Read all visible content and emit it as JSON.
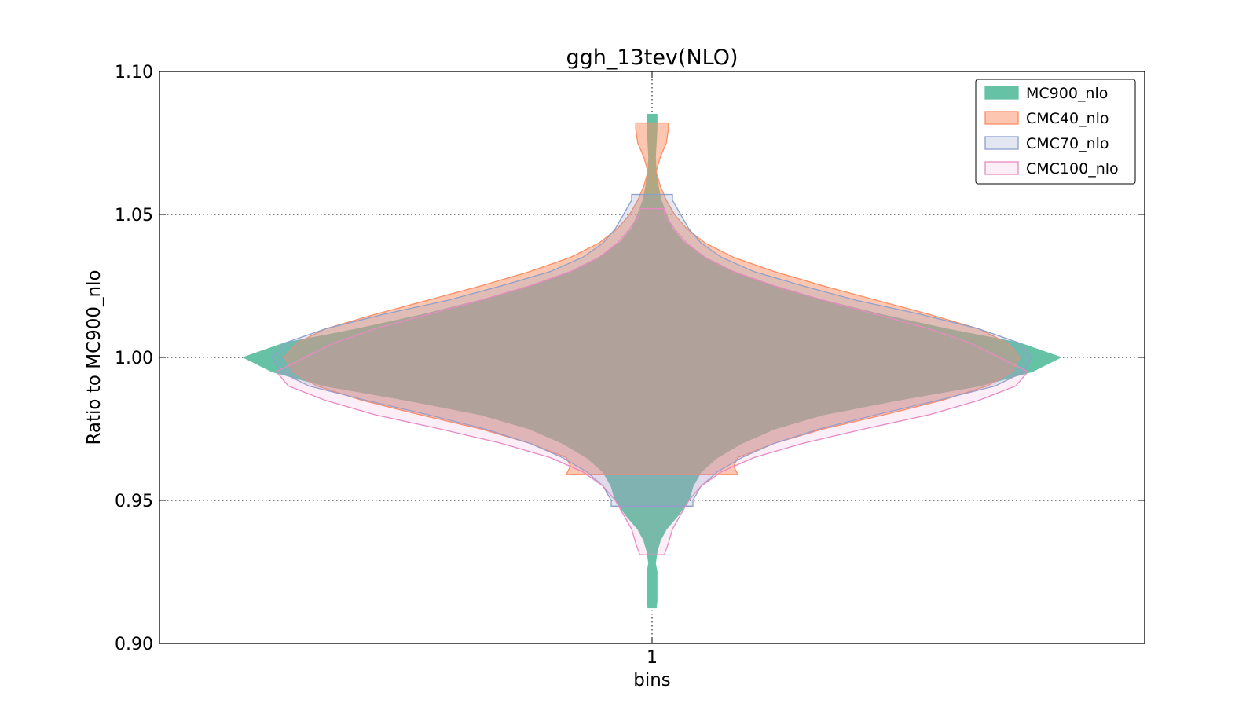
{
  "chart_data": {
    "type": "violin",
    "title": "ggh_13tev(NLO)",
    "xlabel": "bins",
    "ylabel": "Ratio to MC900_nlo",
    "categories": [
      "1"
    ],
    "ylim": [
      0.9,
      1.1
    ],
    "yticks": [
      "0.90",
      "0.95",
      "1.00",
      "1.05",
      "1.10"
    ],
    "grid": true,
    "legend_position": "top-right",
    "series": [
      {
        "name": "MC900_nlo",
        "color": "#66c2a5",
        "alpha": 1.0,
        "min": 0.9125,
        "max": 1.085,
        "profile": [
          [
            0.9125,
            0.01
          ],
          [
            0.915,
            0.012
          ],
          [
            0.92,
            0.012
          ],
          [
            0.925,
            0.012
          ],
          [
            0.928,
            0.008
          ],
          [
            0.932,
            0.012
          ],
          [
            0.936,
            0.02
          ],
          [
            0.94,
            0.035
          ],
          [
            0.945,
            0.065
          ],
          [
            0.95,
            0.09
          ],
          [
            0.955,
            0.1
          ],
          [
            0.96,
            0.12
          ],
          [
            0.965,
            0.16
          ],
          [
            0.97,
            0.22
          ],
          [
            0.975,
            0.3
          ],
          [
            0.98,
            0.42
          ],
          [
            0.985,
            0.6
          ],
          [
            0.99,
            0.8
          ],
          [
            0.995,
            0.93
          ],
          [
            1.0,
            1.0
          ],
          [
            1.005,
            0.9
          ],
          [
            1.01,
            0.72
          ],
          [
            1.015,
            0.56
          ],
          [
            1.02,
            0.42
          ],
          [
            1.025,
            0.3
          ],
          [
            1.03,
            0.2
          ],
          [
            1.035,
            0.13
          ],
          [
            1.04,
            0.08
          ],
          [
            1.045,
            0.05
          ],
          [
            1.05,
            0.035
          ],
          [
            1.055,
            0.022
          ],
          [
            1.06,
            0.015
          ],
          [
            1.065,
            0.01
          ],
          [
            1.07,
            0.008
          ],
          [
            1.075,
            0.01
          ],
          [
            1.08,
            0.012
          ],
          [
            1.085,
            0.012
          ]
        ]
      },
      {
        "name": "CMC40_nlo",
        "color": "#fc8d62",
        "alpha": 0.5,
        "min": 0.959,
        "max": 1.082,
        "profile": [
          [
            0.959,
            0.21
          ],
          [
            0.962,
            0.2
          ],
          [
            0.965,
            0.21
          ],
          [
            0.97,
            0.3
          ],
          [
            0.975,
            0.42
          ],
          [
            0.98,
            0.57
          ],
          [
            0.985,
            0.71
          ],
          [
            0.99,
            0.82
          ],
          [
            0.995,
            0.88
          ],
          [
            1.0,
            0.9
          ],
          [
            1.005,
            0.87
          ],
          [
            1.01,
            0.8
          ],
          [
            1.015,
            0.68
          ],
          [
            1.02,
            0.55
          ],
          [
            1.025,
            0.42
          ],
          [
            1.03,
            0.3
          ],
          [
            1.035,
            0.2
          ],
          [
            1.04,
            0.13
          ],
          [
            1.045,
            0.085
          ],
          [
            1.05,
            0.055
          ],
          [
            1.055,
            0.035
          ],
          [
            1.06,
            0.02
          ],
          [
            1.065,
            0.01
          ],
          [
            1.07,
            0.02
          ],
          [
            1.075,
            0.035
          ],
          [
            1.08,
            0.04
          ],
          [
            1.082,
            0.04
          ]
        ]
      },
      {
        "name": "CMC70_nlo",
        "color": "#8da0cb",
        "alpha": 0.25,
        "min": 0.948,
        "max": 1.057,
        "profile": [
          [
            0.948,
            0.1
          ],
          [
            0.95,
            0.1
          ],
          [
            0.955,
            0.12
          ],
          [
            0.96,
            0.16
          ],
          [
            0.965,
            0.22
          ],
          [
            0.97,
            0.3
          ],
          [
            0.975,
            0.41
          ],
          [
            0.98,
            0.55
          ],
          [
            0.985,
            0.7
          ],
          [
            0.99,
            0.84
          ],
          [
            0.995,
            0.91
          ],
          [
            1.0,
            0.93
          ],
          [
            1.005,
            0.9
          ],
          [
            1.01,
            0.8
          ],
          [
            1.015,
            0.66
          ],
          [
            1.02,
            0.5
          ],
          [
            1.025,
            0.37
          ],
          [
            1.03,
            0.25
          ],
          [
            1.035,
            0.17
          ],
          [
            1.04,
            0.12
          ],
          [
            1.045,
            0.09
          ],
          [
            1.05,
            0.07
          ],
          [
            1.055,
            0.05
          ],
          [
            1.057,
            0.05
          ]
        ]
      },
      {
        "name": "CMC100_nlo",
        "color": "#e78ac3",
        "alpha": 0.15,
        "min": 0.931,
        "max": 1.052,
        "profile": [
          [
            0.931,
            0.03
          ],
          [
            0.935,
            0.04
          ],
          [
            0.94,
            0.05
          ],
          [
            0.945,
            0.07
          ],
          [
            0.95,
            0.09
          ],
          [
            0.955,
            0.12
          ],
          [
            0.96,
            0.17
          ],
          [
            0.965,
            0.25
          ],
          [
            0.97,
            0.37
          ],
          [
            0.975,
            0.52
          ],
          [
            0.98,
            0.68
          ],
          [
            0.985,
            0.8
          ],
          [
            0.99,
            0.89
          ],
          [
            0.995,
            0.92
          ],
          [
            1.0,
            0.85
          ],
          [
            1.005,
            0.78
          ],
          [
            1.01,
            0.68
          ],
          [
            1.015,
            0.55
          ],
          [
            1.02,
            0.42
          ],
          [
            1.025,
            0.3
          ],
          [
            1.03,
            0.2
          ],
          [
            1.035,
            0.13
          ],
          [
            1.04,
            0.085
          ],
          [
            1.045,
            0.055
          ],
          [
            1.05,
            0.03
          ],
          [
            1.052,
            0.03
          ]
        ]
      }
    ]
  }
}
